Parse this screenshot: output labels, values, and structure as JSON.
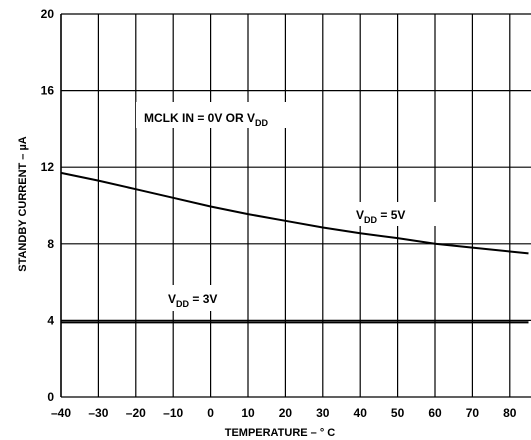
{
  "chart_data": {
    "type": "line",
    "title": "",
    "xlabel": "TEMPERATURE – ° C",
    "ylabel": "STANDBY CURRENT – µA",
    "xlim": [
      -40,
      85
    ],
    "ylim": [
      0,
      20
    ],
    "x_ticks": [
      "–40",
      "–30",
      "–20",
      "–10",
      "0",
      "10",
      "20",
      "30",
      "40",
      "50",
      "60",
      "70",
      "80"
    ],
    "y_ticks": [
      "0",
      "4",
      "8",
      "12",
      "16",
      "20"
    ],
    "grid": true,
    "series": [
      {
        "name": "VDD = 5V",
        "x": [
          -40,
          -30,
          -20,
          -10,
          0,
          10,
          20,
          30,
          40,
          50,
          60,
          70,
          80,
          85
        ],
        "y": [
          11.7,
          11.3,
          10.85,
          10.4,
          9.95,
          9.55,
          9.2,
          8.85,
          8.55,
          8.3,
          8.0,
          7.8,
          7.6,
          7.5
        ]
      },
      {
        "name": "VDD = 3V",
        "x": [
          -40,
          -30,
          -20,
          -10,
          0,
          10,
          20,
          30,
          40,
          50,
          60,
          70,
          80,
          85
        ],
        "y": [
          3.9,
          3.9,
          3.9,
          3.9,
          3.9,
          3.9,
          3.9,
          3.9,
          3.9,
          3.9,
          3.9,
          3.9,
          3.9,
          3.9
        ]
      }
    ],
    "annotations": {
      "condition": {
        "main": "MCLK IN = 0V OR V",
        "sub": "DD"
      },
      "label_5v": {
        "pre": "V",
        "sub": "DD",
        "post": " = 5V"
      },
      "label_3v": {
        "pre": "V",
        "sub": "DD",
        "post": " = 3V"
      }
    },
    "colors": {
      "line": "#000000",
      "grid": "#000000",
      "background": "#ffffff"
    }
  }
}
